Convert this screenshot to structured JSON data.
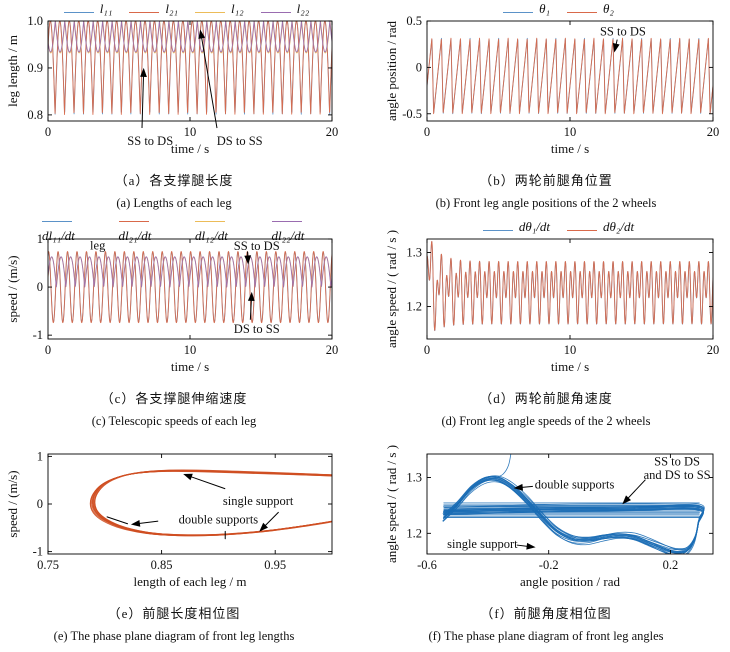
{
  "palette": {
    "blue": "#5b92c8",
    "orange": "#d9694a",
    "yellow": "#ecbc59",
    "purple": "#9a6cb0",
    "phase_orange": "#cf4f22",
    "phase_blue": "#1b6db5",
    "axis": "#000000"
  },
  "chart_data": [
    {
      "id": "a",
      "type": "line",
      "xlabel": "time / s",
      "ylabel": "leg length / m",
      "xrange": [
        0,
        20
      ],
      "yrange": [
        0.787,
        1.0
      ],
      "xticks": [
        "0",
        "10",
        "20"
      ],
      "xtick_vals": [
        0,
        10,
        20
      ],
      "yticks": [
        "0.8",
        "0.9",
        "1.0"
      ],
      "ytick_vals": [
        0.8,
        0.9,
        1.0
      ],
      "caption_cn": "（a）各支撑腿长度",
      "caption_en": "(a) Lengths of each leg",
      "series": [
        {
          "name": "l₁₁",
          "color": "blue",
          "w": 0.9,
          "gen": {
            "kind": "abs_sine",
            "base": 0.8,
            "amp": 0.2,
            "period": 0.6667,
            "phase": 0.165
          }
        },
        {
          "name": "l₂₁",
          "color": "orange",
          "w": 0.9,
          "gen": {
            "kind": "abs_sine",
            "base": 0.8,
            "amp": 0.2,
            "period": 0.6667,
            "phase": 0.17
          }
        },
        {
          "name": "l₁₂",
          "color": "yellow",
          "w": 0.9,
          "gen": {
            "kind": "abs_sine",
            "base": 1.0,
            "amp": -0.068,
            "period": 0.6667,
            "phase": 0.14
          }
        },
        {
          "name": "l₂₂",
          "color": "purple",
          "w": 0.9,
          "gen": {
            "kind": "abs_sine",
            "base": 1.0,
            "amp": -0.066,
            "period": 0.6667,
            "phase": 0.155
          }
        }
      ],
      "annotations": [
        {
          "text": "SS to DS",
          "x": 7.2,
          "y": 0.744,
          "arrows": [
            [
              6.62,
              0.772,
              6.74,
              0.9
            ]
          ]
        },
        {
          "text": "DS to SS",
          "x": 13.5,
          "y": 0.744,
          "arrows": [
            [
              11.9,
              0.772,
              10.72,
              0.982
            ]
          ]
        }
      ]
    },
    {
      "id": "b",
      "type": "line",
      "xlabel": "time / s",
      "ylabel": "angle position / rad",
      "xrange": [
        0,
        20
      ],
      "yrange": [
        -0.578,
        0.5
      ],
      "xticks": [
        "0",
        "10",
        "20"
      ],
      "xtick_vals": [
        0,
        10,
        20
      ],
      "yticks": [
        "-0.5",
        "0",
        "0.5"
      ],
      "ytick_vals": [
        -0.5,
        0,
        0.5
      ],
      "caption_cn": "（b）两轮前腿角位置",
      "caption_en": "(b) Front leg angle positions of the 2 wheels",
      "series": [
        {
          "name": "θ₁",
          "color": "blue",
          "w": 0.9,
          "gen": {
            "kind": "sawtooth",
            "min": -0.5,
            "max": 0.315,
            "period": 0.6667,
            "rise": 0.82,
            "phase": 0.2
          }
        },
        {
          "name": "θ₂",
          "color": "orange",
          "w": 0.9,
          "gen": {
            "kind": "sawtooth",
            "min": -0.5,
            "max": 0.315,
            "period": 0.6667,
            "rise": 0.82,
            "phase": 0.205
          }
        }
      ],
      "annotations": [
        {
          "text": "SS to DS",
          "x": 13.7,
          "y": 0.385,
          "arrows": [
            [
              13.3,
              0.3,
              13.1,
              0.16
            ]
          ]
        }
      ]
    },
    {
      "id": "c",
      "type": "line",
      "xlabel": "time / s",
      "ylabel": "speed / (m/s)",
      "xrange": [
        0,
        20
      ],
      "yrange": [
        -1.08,
        1.0
      ],
      "xticks": [
        "0",
        "10",
        "20"
      ],
      "xtick_vals": [
        0,
        10,
        20
      ],
      "yticks": [
        "-1",
        "0",
        "1"
      ],
      "ytick_vals": [
        -1,
        0,
        1
      ],
      "caption_cn": "（c）各支撑腿伸缩速度",
      "caption_en": "(c) Telescopic speeds of each leg",
      "series": [
        {
          "name": "dl₁₁/dt",
          "color": "blue",
          "w": 0.9,
          "gen": {
            "kind": "sine",
            "base": 0,
            "amp": 0.73,
            "period": 0.6667,
            "phase": 0.12
          }
        },
        {
          "name": "dl₂₁/dt",
          "color": "orange",
          "w": 0.9,
          "gen": {
            "kind": "sine",
            "base": 0,
            "amp": 0.74,
            "period": 0.6667,
            "phase": 0.125
          }
        },
        {
          "name": "dl₁₂/dt",
          "color": "yellow",
          "w": 0.9,
          "gen": {
            "kind": "abs_sine",
            "base": 0.005,
            "amp": 0.62,
            "period": 0.6667,
            "phase": 0.07
          }
        },
        {
          "name": "dl₂₂/dt",
          "color": "purple",
          "w": 0.9,
          "gen": {
            "kind": "abs_sine",
            "base": 0,
            "amp": 0.63,
            "period": 0.6667,
            "phase": 0.08
          }
        }
      ],
      "annotations": [
        {
          "text": "leg",
          "x": 3.5,
          "y": 0.87,
          "arrows": []
        },
        {
          "text": "SS to DS",
          "x": 14.7,
          "y": 0.85,
          "arrows": [
            [
              14.05,
              0.74,
              14.1,
              0.47
            ]
          ]
        },
        {
          "text": "DS to SS",
          "x": 14.7,
          "y": -0.87,
          "arrows": [
            [
              14.25,
              -0.68,
              14.35,
              -0.1
            ]
          ]
        }
      ]
    },
    {
      "id": "d",
      "type": "line",
      "xlabel": "time / s",
      "ylabel": "angle speed / ( rad / s )",
      "xrange": [
        0,
        20
      ],
      "yrange": [
        1.14,
        1.325
      ],
      "xticks": [
        "0",
        "10",
        "20"
      ],
      "xtick_vals": [
        0,
        10,
        20
      ],
      "yticks": [
        "1.2",
        "1.3"
      ],
      "ytick_vals": [
        1.2,
        1.3
      ],
      "caption_cn": "（d）两轮前腿角速度",
      "caption_en": "(d) Front leg angle speeds of the 2 wheels",
      "series": [
        {
          "name": "dθ₁/dt",
          "color": "blue",
          "w": 0.9,
          "gen": {
            "kind": "two_sine",
            "base": 1.232,
            "a1": 0.026,
            "p1": -0.6,
            "a2": 0.04,
            "p2": 1.1,
            "period": 0.6667,
            "tr_amp": -0.05,
            "tr_tau": 0.8,
            "tr_ph": 0.2,
            "sp_amp": 0.09,
            "sp_tau": 0.12
          }
        },
        {
          "name": "dθ₂/dt",
          "color": "orange",
          "w": 0.9,
          "gen": {
            "kind": "two_sine",
            "base": 1.2325,
            "a1": 0.026,
            "p1": -0.6,
            "a2": 0.04,
            "p2": 1.1,
            "period": 0.6667,
            "tr_amp": -0.05,
            "tr_tau": 0.8,
            "tr_ph": 0.2,
            "sp_amp": 0.09,
            "sp_tau": 0.12
          }
        }
      ],
      "annotations": []
    },
    {
      "id": "e",
      "type": "phase",
      "xlabel": "length of each leg / m",
      "ylabel": "speed / (m/s)",
      "xrange": [
        0.75,
        1.0
      ],
      "yrange": [
        -1.05,
        1.05
      ],
      "xticks": [
        "0.75",
        "0.85",
        "0.95"
      ],
      "xtick_vals": [
        0.75,
        0.85,
        0.95
      ],
      "yticks": [
        "-1",
        "0",
        "1"
      ],
      "ytick_vals": [
        -1,
        0,
        1
      ],
      "caption_cn": "（e）前腿长度相位图",
      "caption_en": "(e) The phase plane diagram of front leg lengths",
      "series": [
        {
          "name": "front-leg-length-orbit",
          "color": "phase_orange",
          "w": 0.9,
          "gen": {
            "kind": "path",
            "replicas": 10,
            "jx": 0.0035,
            "jy": 0.024,
            "points": [
              [
                1.004,
                0.6
              ],
              [
                0.965,
                0.635
              ],
              [
                0.925,
                0.665
              ],
              [
                0.885,
                0.692
              ],
              [
                0.855,
                0.695
              ],
              [
                0.83,
                0.655
              ],
              [
                0.812,
                0.565
              ],
              [
                0.799,
                0.42
              ],
              [
                0.7915,
                0.22
              ],
              [
                0.7895,
                0.02
              ],
              [
                0.7925,
                -0.17
              ],
              [
                0.801,
                -0.34
              ],
              [
                0.8165,
                -0.5
              ],
              [
                0.838,
                -0.61
              ],
              [
                0.865,
                -0.655
              ],
              [
                0.9,
                -0.645
              ],
              [
                0.94,
                -0.57
              ],
              [
                0.975,
                -0.46
              ],
              [
                1.004,
                -0.35
              ]
            ]
          }
        },
        {
          "name": "transition-marks",
          "color": "axis",
          "w": 1,
          "gen": {
            "kind": "segs",
            "segs": [
              [
                0.802,
                -0.27,
                0.82,
                -0.415
              ],
              [
                0.906,
                -0.575,
                0.906,
                -0.73
              ]
            ]
          }
        }
      ],
      "annotations": [
        {
          "text": "single support",
          "x": 0.935,
          "y": 0.06,
          "arrows": [
            [
              0.906,
              0.32,
              0.869,
              0.63
            ],
            [
              0.953,
              -0.17,
              0.936,
              -0.58
            ]
          ]
        },
        {
          "text": "double supports",
          "x": 0.9,
          "y": -0.33,
          "arrows": [
            [
              0.847,
              -0.36,
              0.823,
              -0.43
            ]
          ]
        }
      ]
    },
    {
      "id": "f",
      "type": "phase",
      "xlabel": "angle position / rad",
      "ylabel": "angle speed / ( rad / s )",
      "xrange": [
        -0.6,
        0.34
      ],
      "yrange": [
        1.163,
        1.342
      ],
      "xticks": [
        "-0.6",
        "-0.2",
        "0.2"
      ],
      "xtick_vals": [
        -0.6,
        -0.2,
        0.2
      ],
      "yticks": [
        "1.2",
        "1.3"
      ],
      "ytick_vals": [
        1.2,
        1.3
      ],
      "caption_cn": "（f）前腿角度相位图",
      "caption_en": "(f) The phase plane diagram of front leg angles",
      "series": [
        {
          "name": "transition-band",
          "color": "phase_blue",
          "w": 0.7,
          "gen": {
            "kind": "hband",
            "x1": -0.545,
            "x2": 0.295,
            "ymin": 1.2285,
            "ymax": 1.2545,
            "count": 12
          }
        },
        {
          "name": "front-leg-angle-orbit",
          "color": "phase_blue",
          "w": 0.8,
          "gen": {
            "kind": "path",
            "replicas": 13,
            "jx": 0.004,
            "jy": 0.011,
            "points": [
              [
                -0.545,
                1.228
              ],
              [
                -0.5,
                1.252
              ],
              [
                -0.455,
                1.28
              ],
              [
                -0.41,
                1.296
              ],
              [
                -0.365,
                1.297
              ],
              [
                -0.32,
                1.283
              ],
              [
                -0.27,
                1.258
              ],
              [
                -0.22,
                1.228
              ],
              [
                -0.17,
                1.203
              ],
              [
                -0.12,
                1.19
              ],
              [
                -0.07,
                1.188
              ],
              [
                -0.02,
                1.193
              ],
              [
                0.03,
                1.196
              ],
              [
                0.08,
                1.193
              ],
              [
                0.13,
                1.183
              ],
              [
                0.18,
                1.172
              ],
              [
                0.22,
                1.166
              ],
              [
                0.255,
                1.17
              ],
              [
                0.28,
                1.19
              ],
              [
                0.293,
                1.222
              ],
              [
                0.295,
                1.246
              ],
              [
                0.1,
                1.2455
              ],
              [
                -0.2,
                1.2435
              ],
              [
                -0.545,
                1.2395
              ]
            ]
          }
        },
        {
          "name": "initial-transient",
          "color": "phase_blue",
          "w": 0.8,
          "gen": {
            "kind": "path",
            "replicas": 1,
            "jx": 0,
            "jy": 0,
            "points": [
              [
                -0.322,
                1.35
              ],
              [
                -0.332,
                1.322
              ],
              [
                -0.35,
                1.306
              ],
              [
                -0.378,
                1.299
              ],
              [
                -0.405,
                1.297
              ]
            ]
          }
        }
      ],
      "annotations": [
        {
          "text": "double supports",
          "x": -0.115,
          "y": 1.287,
          "arrows": [
            [
              -0.252,
              1.284,
              -0.315,
              1.281
            ]
          ]
        },
        {
          "text": "SS to DS\nand DS to SS",
          "x": 0.222,
          "y": 1.329,
          "arrows": [
            [
              0.118,
              1.296,
              0.042,
              1.252
            ]
          ]
        },
        {
          "text": "single support",
          "x": -0.418,
          "y": 1.181,
          "arrows": [
            [
              -0.305,
              1.179,
              -0.243,
              1.175
            ]
          ]
        }
      ]
    }
  ]
}
